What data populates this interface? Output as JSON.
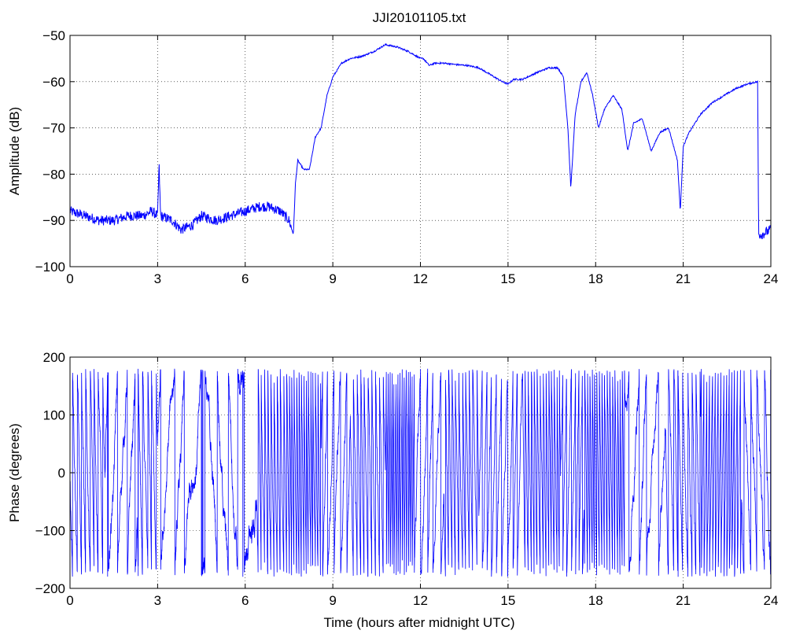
{
  "figure": {
    "background": "#ffffff",
    "line_color": "#0000ff"
  },
  "chart_data": [
    {
      "type": "line",
      "title": "JJI20101105.txt",
      "xlabel": "",
      "ylabel": "Amplitude (dB)",
      "xlim": [
        0,
        24
      ],
      "ylim": [
        -100,
        -50
      ],
      "xticks": [
        0,
        3,
        6,
        9,
        12,
        15,
        18,
        21,
        24
      ],
      "yticks": [
        -100,
        -90,
        -80,
        -70,
        -60,
        -50
      ],
      "grid": true,
      "x": [
        0,
        0.5,
        1,
        1.5,
        2,
        2.5,
        2.8,
        3,
        3.05,
        3.1,
        3.5,
        3.8,
        4.2,
        4.5,
        5,
        5.5,
        6,
        6.5,
        6.8,
        7.2,
        7.5,
        7.65,
        7.72,
        7.8,
        8,
        8.2,
        8.4,
        8.6,
        8.8,
        9,
        9.3,
        9.6,
        10,
        10.4,
        10.8,
        11.2,
        11.6,
        12,
        12.1,
        12.3,
        12.5,
        12.8,
        13.2,
        13.6,
        14,
        14.4,
        14.8,
        15,
        15.2,
        15.5,
        16,
        16.4,
        16.7,
        16.9,
        17.05,
        17.15,
        17.3,
        17.5,
        17.7,
        17.9,
        18.1,
        18.3,
        18.6,
        18.9,
        19.1,
        19.3,
        19.6,
        19.9,
        20.2,
        20.5,
        20.8,
        20.9,
        21,
        21.2,
        21.6,
        22,
        22.4,
        22.8,
        23.2,
        23.55,
        23.58,
        23.7,
        24
      ],
      "y": [
        -88,
        -89,
        -90,
        -90,
        -89,
        -89,
        -88,
        -89,
        -78,
        -89,
        -90,
        -92,
        -91,
        -89,
        -90,
        -89,
        -88,
        -87,
        -87,
        -88,
        -90,
        -93,
        -82,
        -77,
        -79,
        -79,
        -72,
        -70,
        -63,
        -59,
        -56,
        -55,
        -54.5,
        -53.5,
        -52,
        -52.5,
        -53.5,
        -55,
        -55,
        -56.5,
        -56,
        -56,
        -56.3,
        -56.5,
        -57,
        -58.5,
        -60,
        -60.5,
        -59.5,
        -59.5,
        -58,
        -57,
        -57,
        -59,
        -70,
        -83,
        -67,
        -60,
        -58,
        -63,
        -70,
        -66,
        -63,
        -66,
        -75,
        -69,
        -68,
        -75,
        -71,
        -70,
        -77,
        -88,
        -74,
        -71,
        -67,
        -64.5,
        -63,
        -61.5,
        -60.5,
        -60,
        -93,
        -93,
        -92
      ],
      "series": [
        {
          "color": "#0000ff"
        }
      ]
    },
    {
      "type": "line",
      "title": "",
      "xlabel": "Time (hours after midnight UTC)",
      "ylabel": "Phase (degrees)",
      "xlim": [
        0,
        24
      ],
      "ylim": [
        -200,
        200
      ],
      "xticks": [
        0,
        3,
        6,
        9,
        12,
        15,
        18,
        21,
        24
      ],
      "yticks": [
        -200,
        -100,
        0,
        100,
        200
      ],
      "grid": true,
      "wrap_range": [
        -180,
        180
      ],
      "segments": [
        {
          "x": [
            0,
            1.2
          ],
          "rate_deg_per_hour": -2400
        },
        {
          "x": [
            1.2,
            2.3
          ],
          "rate_deg_per_hour": 1100
        },
        {
          "x": [
            2.3,
            3.0
          ],
          "rate_deg_per_hour": -2600
        },
        {
          "x": [
            3.0,
            4.6
          ],
          "rate_deg_per_hour": 650
        },
        {
          "x": [
            4.6,
            5.8
          ],
          "rate_deg_per_hour": -900
        },
        {
          "x": [
            5.8,
            6.4
          ],
          "rate_deg_per_hour": 250
        },
        {
          "x": [
            6.4,
            7.4
          ],
          "rate_deg_per_hour": -3400
        },
        {
          "x": [
            7.4,
            8.6
          ],
          "rate_deg_per_hour": -4200
        },
        {
          "x": [
            8.6,
            9.6
          ],
          "rate_deg_per_hour": 1800
        },
        {
          "x": [
            9.6,
            10.8
          ],
          "rate_deg_per_hour": -2600
        },
        {
          "x": [
            10.8,
            11.8
          ],
          "rate_deg_per_hour": 5200
        },
        {
          "x": [
            11.8,
            12.8
          ],
          "rate_deg_per_hour": 1500
        },
        {
          "x": [
            12.8,
            14.0
          ],
          "rate_deg_per_hour": -3000
        },
        {
          "x": [
            14.0,
            15.5
          ],
          "rate_deg_per_hour": 2200
        },
        {
          "x": [
            15.5,
            16.8
          ],
          "rate_deg_per_hour": -3800
        },
        {
          "x": [
            16.8,
            17.6
          ],
          "rate_deg_per_hour": 2600
        },
        {
          "x": [
            17.6,
            19.0
          ],
          "rate_deg_per_hour": -4200
        },
        {
          "x": [
            19.0,
            20.4
          ],
          "rate_deg_per_hour": 1300
        },
        {
          "x": [
            20.4,
            21.6
          ],
          "rate_deg_per_hour": -2300
        },
        {
          "x": [
            21.6,
            23.0
          ],
          "rate_deg_per_hour": 3600
        },
        {
          "x": [
            23.0,
            24.0
          ],
          "rate_deg_per_hour": -1800
        }
      ],
      "noise_amplitude_deg": 25,
      "series": [
        {
          "color": "#0000ff"
        }
      ]
    }
  ]
}
